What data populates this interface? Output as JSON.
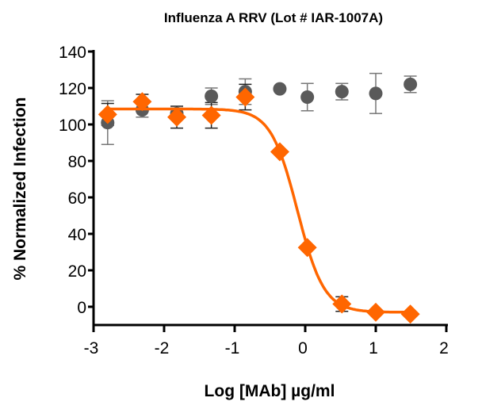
{
  "chart_data": {
    "type": "scatter",
    "title": "Influenza A RRV (Lot # IAR-1007A)",
    "xlabel": "Log [MAb] µg/ml",
    "ylabel": "% Normalized Infection",
    "xlim": [
      -3,
      2
    ],
    "ylim": [
      -10,
      140
    ],
    "xticks": [
      "-3",
      "-2",
      "-1",
      "0",
      "1",
      "2"
    ],
    "yticks": [
      "0",
      "20",
      "40",
      "60",
      "80",
      "100",
      "120",
      "140"
    ],
    "grid": false,
    "legend": "none",
    "series": [
      {
        "marker": "circle",
        "color": "#5a5a5a",
        "x": [
          -2.8,
          -2.31,
          -1.82,
          -1.33,
          -0.85,
          -0.36,
          0.03,
          0.52,
          1.0,
          1.49
        ],
        "y": [
          101,
          108,
          106,
          115.5,
          118,
          119.5,
          115,
          118,
          117,
          122
        ],
        "error": [
          12,
          4,
          3,
          4.5,
          7,
          0,
          7.5,
          4.5,
          11,
          4.5
        ]
      },
      {
        "marker": "diamond",
        "color": "#ff6600",
        "x": [
          -2.8,
          -2.31,
          -1.82,
          -1.33,
          -0.85,
          -0.36,
          0.03,
          0.52,
          1.0,
          1.49
        ],
        "y": [
          105.5,
          112.5,
          104,
          105,
          115,
          85,
          32.5,
          1.5,
          -3,
          -4
        ],
        "error": [
          6,
          4,
          6,
          7,
          7,
          0,
          0,
          4,
          0,
          0
        ],
        "fit": {
          "model": "4PL",
          "top": 108.5,
          "bottom": -3,
          "logIC50": -0.11,
          "hill": 2.3
        }
      }
    ]
  }
}
